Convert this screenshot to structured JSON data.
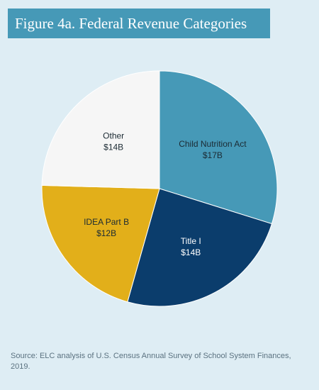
{
  "title": "Figure 4a. Federal Revenue Categories",
  "source": "Source: ELC analysis of U.S. Census Annual Survey of School System Finances, 2019.",
  "chart_data": {
    "type": "pie",
    "title": "Figure 4a. Federal Revenue Categories",
    "slices": [
      {
        "label": "Child Nutrition Act",
        "value": 17,
        "value_label": "$17B",
        "color": "#4699b7",
        "label_color": "#1b2a33"
      },
      {
        "label": "Title I",
        "value": 14,
        "value_label": "$14B",
        "color": "#0b3d6c",
        "label_color": "#ffffff"
      },
      {
        "label": "IDEA Part B",
        "value": 12,
        "value_label": "$12B",
        "color": "#e2af1a",
        "label_color": "#1b2a33"
      },
      {
        "label": "Other",
        "value": 14,
        "value_label": "$14B",
        "color": "#f6f6f6",
        "label_color": "#1b2a33"
      }
    ],
    "start": "12 o'clock",
    "direction": "clockwise"
  }
}
